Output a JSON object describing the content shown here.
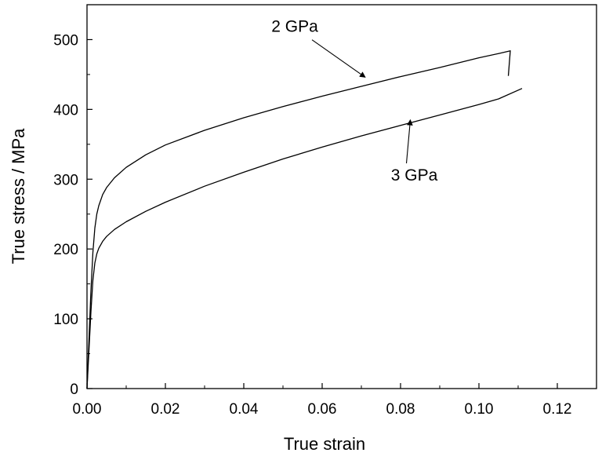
{
  "chart_data": {
    "type": "line",
    "title": "",
    "xlabel": "True strain",
    "ylabel": "True stress / MPa",
    "xlim": [
      0,
      0.13
    ],
    "ylim": [
      0,
      550
    ],
    "x_ticks": [
      0.0,
      0.02,
      0.04,
      0.06,
      0.08,
      0.1,
      0.12
    ],
    "x_tick_labels": [
      "0.00",
      "0.02",
      "0.04",
      "0.06",
      "0.08",
      "0.10",
      "0.12"
    ],
    "y_ticks": [
      0,
      100,
      200,
      300,
      400,
      500
    ],
    "y_tick_labels": [
      "0",
      "100",
      "200",
      "300",
      "400",
      "500"
    ],
    "grid": false,
    "legend": "none",
    "series": [
      {
        "name": "2 GPa",
        "x": [
          0,
          0.0005,
          0.001,
          0.0015,
          0.002,
          0.0025,
          0.003,
          0.004,
          0.005,
          0.007,
          0.01,
          0.015,
          0.02,
          0.03,
          0.04,
          0.05,
          0.06,
          0.07,
          0.08,
          0.09,
          0.1,
          0.105,
          0.108,
          0.1075
        ],
        "y": [
          0,
          70,
          140,
          195,
          230,
          250,
          262,
          278,
          288,
          302,
          317,
          335,
          349,
          370,
          388,
          404,
          419,
          433,
          447,
          460,
          474,
          480,
          484,
          448
        ]
      },
      {
        "name": "3 GPa",
        "x": [
          0,
          0.0005,
          0.001,
          0.0015,
          0.002,
          0.0025,
          0.003,
          0.004,
          0.005,
          0.007,
          0.01,
          0.015,
          0.02,
          0.03,
          0.04,
          0.05,
          0.06,
          0.07,
          0.08,
          0.09,
          0.1,
          0.105,
          0.111
        ],
        "y": [
          0,
          55,
          110,
          155,
          180,
          193,
          201,
          211,
          218,
          228,
          239,
          254,
          267,
          290,
          310,
          329,
          346,
          362,
          377,
          392,
          407,
          415,
          430
        ]
      }
    ],
    "annotations": [
      {
        "text": "2 GPa",
        "series": "2 GPa",
        "arrow_to": [
          0.071,
          446
        ],
        "label_at": [
          0.053,
          511
        ]
      },
      {
        "text": "3 GPa",
        "series": "3 GPa",
        "arrow_to": [
          0.0825,
          385
        ],
        "label_at": [
          0.0835,
          298
        ]
      }
    ]
  }
}
